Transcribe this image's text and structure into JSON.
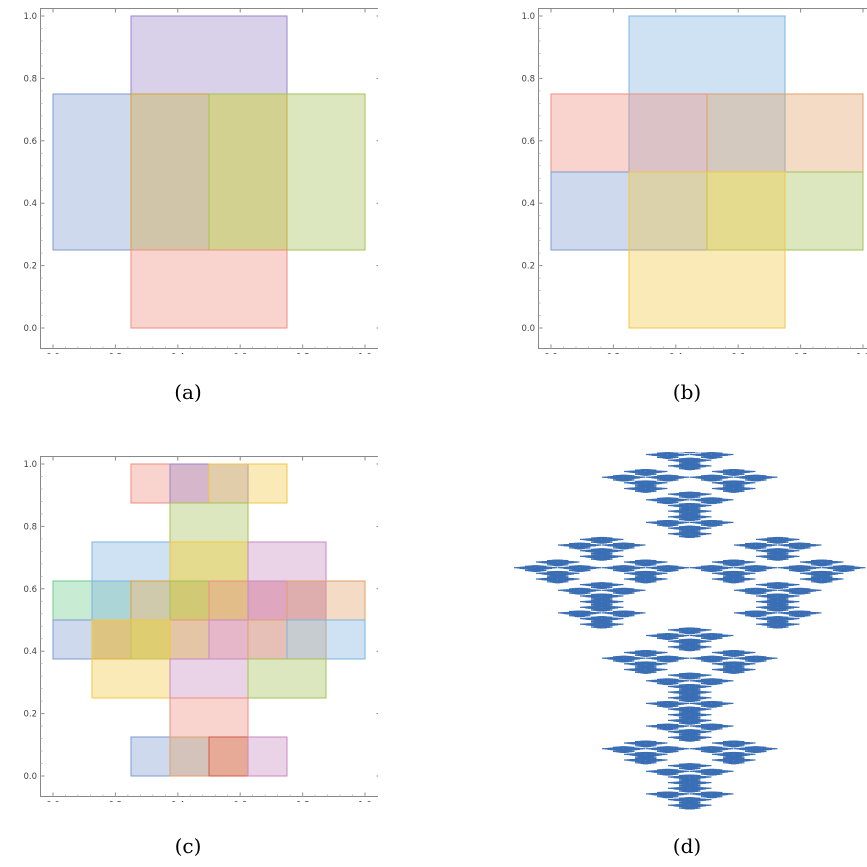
{
  "figure": {
    "captions": [
      "(a)",
      "(b)",
      "(c)",
      "(d)"
    ],
    "fractal_color": "#3a6fb5"
  },
  "chart_data": [
    {
      "id": "a",
      "type": "rectangles",
      "xlim": [
        0,
        1
      ],
      "ylim": [
        0,
        1
      ],
      "xticks": [
        "0.0",
        "0.2",
        "0.4",
        "0.6",
        "0.8",
        "1.0"
      ],
      "yticks": [
        "0.0",
        "0.2",
        "0.4",
        "0.6",
        "0.8",
        "1.0"
      ],
      "rects": [
        {
          "x0": 0.25,
          "y0": 0.75,
          "x1": 0.75,
          "y1": 1.0,
          "color": "#9b86c8"
        },
        {
          "x0": 0.0,
          "y0": 0.25,
          "x1": 0.5,
          "y1": 0.75,
          "color": "#7f9ad0"
        },
        {
          "x0": 0.25,
          "y0": 0.25,
          "x1": 0.75,
          "y1": 0.75,
          "color": "#d6a23a"
        },
        {
          "x0": 0.5,
          "y0": 0.25,
          "x1": 1.0,
          "y1": 0.75,
          "color": "#a6c156"
        },
        {
          "x0": 0.25,
          "y0": 0.0,
          "x1": 0.75,
          "y1": 0.25,
          "color": "#ee8e7e"
        }
      ]
    },
    {
      "id": "b",
      "type": "rectangles",
      "xlim": [
        0,
        1
      ],
      "ylim": [
        0,
        1
      ],
      "xticks": [
        "0.0",
        "0.2",
        "0.4",
        "0.6",
        "0.8",
        "1.0"
      ],
      "yticks": [
        "0.0",
        "0.2",
        "0.4",
        "0.6",
        "0.8",
        "1.0"
      ],
      "rects": [
        {
          "x0": 0.25,
          "y0": 0.5,
          "x1": 0.75,
          "y1": 1.0,
          "color": "#7db4e0"
        },
        {
          "x0": 0.0,
          "y0": 0.5,
          "x1": 0.5,
          "y1": 0.75,
          "color": "#ee8e7e"
        },
        {
          "x0": 0.5,
          "y0": 0.5,
          "x1": 1.0,
          "y1": 0.75,
          "color": "#e0a06a"
        },
        {
          "x0": 0.0,
          "y0": 0.25,
          "x1": 0.5,
          "y1": 0.5,
          "color": "#7f9ad0"
        },
        {
          "x0": 0.5,
          "y0": 0.25,
          "x1": 1.0,
          "y1": 0.5,
          "color": "#a6c156"
        },
        {
          "x0": 0.25,
          "y0": 0.0,
          "x1": 0.75,
          "y1": 0.5,
          "color": "#f2c743"
        }
      ]
    },
    {
      "id": "c",
      "type": "rectangles",
      "xlim": [
        0,
        1
      ],
      "ylim": [
        0,
        1
      ],
      "xticks": [
        "0.0",
        "0.2",
        "0.4",
        "0.6",
        "0.8",
        "1.0"
      ],
      "yticks": [
        "0.0",
        "0.2",
        "0.4",
        "0.6",
        "0.8",
        "1.0"
      ],
      "rects": [
        {
          "x0": 0.25,
          "y0": 0.875,
          "x1": 0.5,
          "y1": 1.0,
          "color": "#ee8e7e"
        },
        {
          "x0": 0.375,
          "y0": 0.875,
          "x1": 0.625,
          "y1": 1.0,
          "color": "#9b86c8"
        },
        {
          "x0": 0.5,
          "y0": 0.875,
          "x1": 0.75,
          "y1": 1.0,
          "color": "#f2c743"
        },
        {
          "x0": 0.375,
          "y0": 0.625,
          "x1": 0.625,
          "y1": 0.875,
          "color": "#a6c156"
        },
        {
          "x0": 0.125,
          "y0": 0.625,
          "x1": 0.375,
          "y1": 0.75,
          "color": "#7db4e0"
        },
        {
          "x0": 0.375,
          "y0": 0.5,
          "x1": 0.625,
          "y1": 0.75,
          "color": "#f2c743"
        },
        {
          "x0": 0.625,
          "y0": 0.5,
          "x1": 0.875,
          "y1": 0.75,
          "color": "#c88ac0"
        },
        {
          "x0": 0.0,
          "y0": 0.5,
          "x1": 0.25,
          "y1": 0.625,
          "color": "#6fca8e"
        },
        {
          "x0": 0.125,
          "y0": 0.5,
          "x1": 0.375,
          "y1": 0.625,
          "color": "#7db4e0"
        },
        {
          "x0": 0.25,
          "y0": 0.5,
          "x1": 0.5,
          "y1": 0.625,
          "color": "#d6a23a"
        },
        {
          "x0": 0.375,
          "y0": 0.5,
          "x1": 0.625,
          "y1": 0.625,
          "color": "#a6c156"
        },
        {
          "x0": 0.5,
          "y0": 0.5,
          "x1": 0.75,
          "y1": 0.625,
          "color": "#ee8e7e"
        },
        {
          "x0": 0.625,
          "y0": 0.5,
          "x1": 0.875,
          "y1": 0.625,
          "color": "#c88ac0"
        },
        {
          "x0": 0.75,
          "y0": 0.5,
          "x1": 1.0,
          "y1": 0.625,
          "color": "#e0a06a"
        },
        {
          "x0": 0.0,
          "y0": 0.375,
          "x1": 0.25,
          "y1": 0.5,
          "color": "#7f9ad0"
        },
        {
          "x0": 0.125,
          "y0": 0.375,
          "x1": 0.375,
          "y1": 0.5,
          "color": "#d6a23a"
        },
        {
          "x0": 0.25,
          "y0": 0.375,
          "x1": 0.5,
          "y1": 0.5,
          "color": "#a6c156"
        },
        {
          "x0": 0.375,
          "y0": 0.375,
          "x1": 0.625,
          "y1": 0.5,
          "color": "#ee8e7e"
        },
        {
          "x0": 0.5,
          "y0": 0.375,
          "x1": 0.75,
          "y1": 0.5,
          "color": "#c88ac0"
        },
        {
          "x0": 0.625,
          "y0": 0.375,
          "x1": 0.875,
          "y1": 0.5,
          "color": "#e0a06a"
        },
        {
          "x0": 0.75,
          "y0": 0.375,
          "x1": 1.0,
          "y1": 0.5,
          "color": "#7db4e0"
        },
        {
          "x0": 0.125,
          "y0": 0.25,
          "x1": 0.375,
          "y1": 0.5,
          "color": "#f2c743"
        },
        {
          "x0": 0.375,
          "y0": 0.25,
          "x1": 0.625,
          "y1": 0.375,
          "color": "#c88ac0"
        },
        {
          "x0": 0.625,
          "y0": 0.25,
          "x1": 0.875,
          "y1": 0.375,
          "color": "#a6c156"
        },
        {
          "x0": 0.375,
          "y0": 0.125,
          "x1": 0.625,
          "y1": 0.25,
          "color": "#ee8e7e"
        },
        {
          "x0": 0.25,
          "y0": 0.0,
          "x1": 0.5,
          "y1": 0.125,
          "color": "#7f9ad0"
        },
        {
          "x0": 0.375,
          "y0": 0.0,
          "x1": 0.625,
          "y1": 0.125,
          "color": "#e0a06a"
        },
        {
          "x0": 0.5,
          "y0": 0.0,
          "x1": 0.625,
          "y1": 0.125,
          "color": "#d15a4a"
        },
        {
          "x0": 0.625,
          "y0": 0.0,
          "x1": 0.75,
          "y1": 0.125,
          "color": "#c88ac0"
        }
      ]
    }
  ]
}
